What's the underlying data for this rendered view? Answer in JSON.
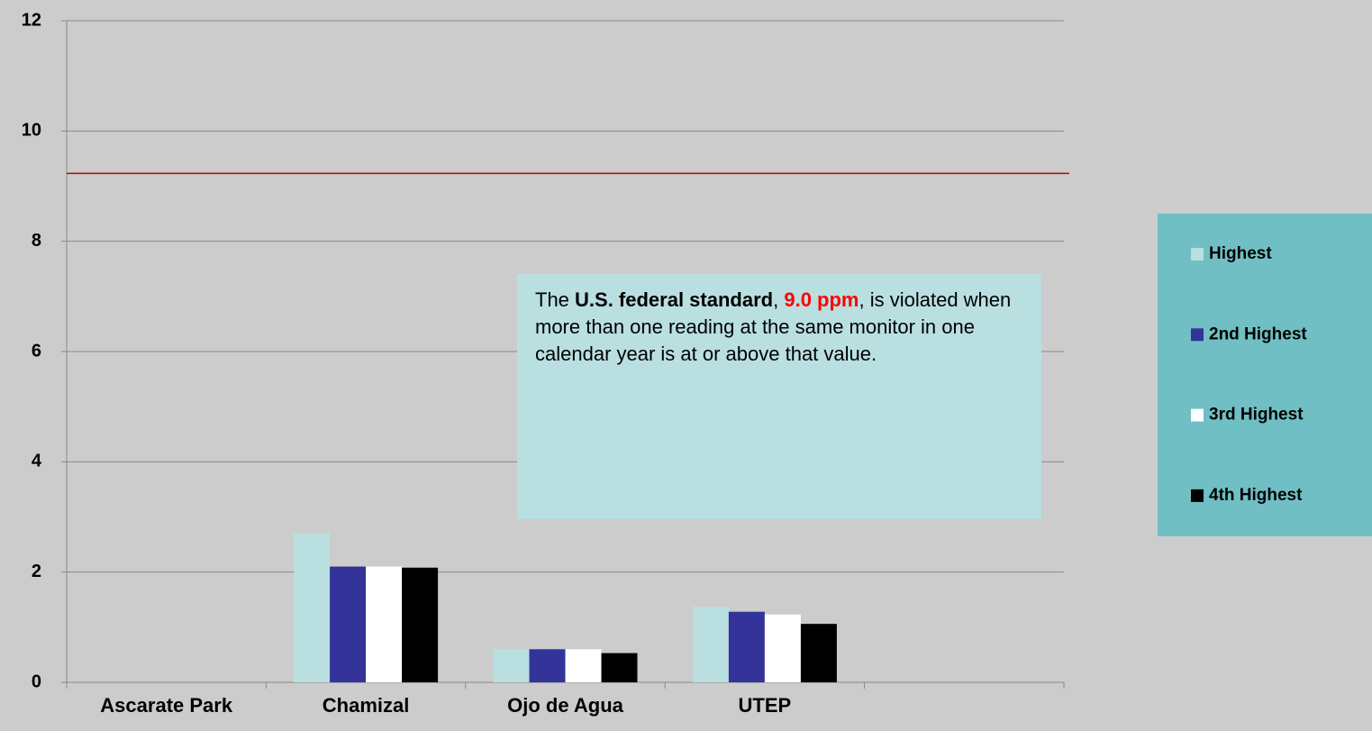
{
  "chart_data": {
    "type": "bar",
    "categories": [
      "Ascarate Park",
      "Chamizal",
      "Ojo de Agua",
      "UTEP",
      null
    ],
    "series": [
      {
        "name": "Highest",
        "color": "#b9dfe1",
        "values": [
          null,
          2.7,
          0.6,
          1.37,
          null
        ]
      },
      {
        "name": "2nd Highest",
        "color": "#333399",
        "values": [
          null,
          2.1,
          0.6,
          1.28,
          null
        ]
      },
      {
        "name": "3rd Highest",
        "color": "#ffffff",
        "values": [
          null,
          2.1,
          0.6,
          1.23,
          null
        ]
      },
      {
        "name": "4th Highest",
        "color": "#000000",
        "values": [
          null,
          2.08,
          0.53,
          1.06,
          null
        ]
      }
    ],
    "ylim": [
      0,
      12
    ],
    "yticks": [
      0,
      2,
      4,
      6,
      8,
      10,
      12
    ],
    "grid": true,
    "legend": "right",
    "reference_line": {
      "value": 9.23,
      "color": "#c00000"
    },
    "annotation": {
      "parts": [
        "The ",
        "U.S. federal standard",
        ", ",
        "9.0 ppm",
        ",",
        " is violated when more than one reading at the same monitor in one calendar year is at or above that value."
      ]
    }
  }
}
